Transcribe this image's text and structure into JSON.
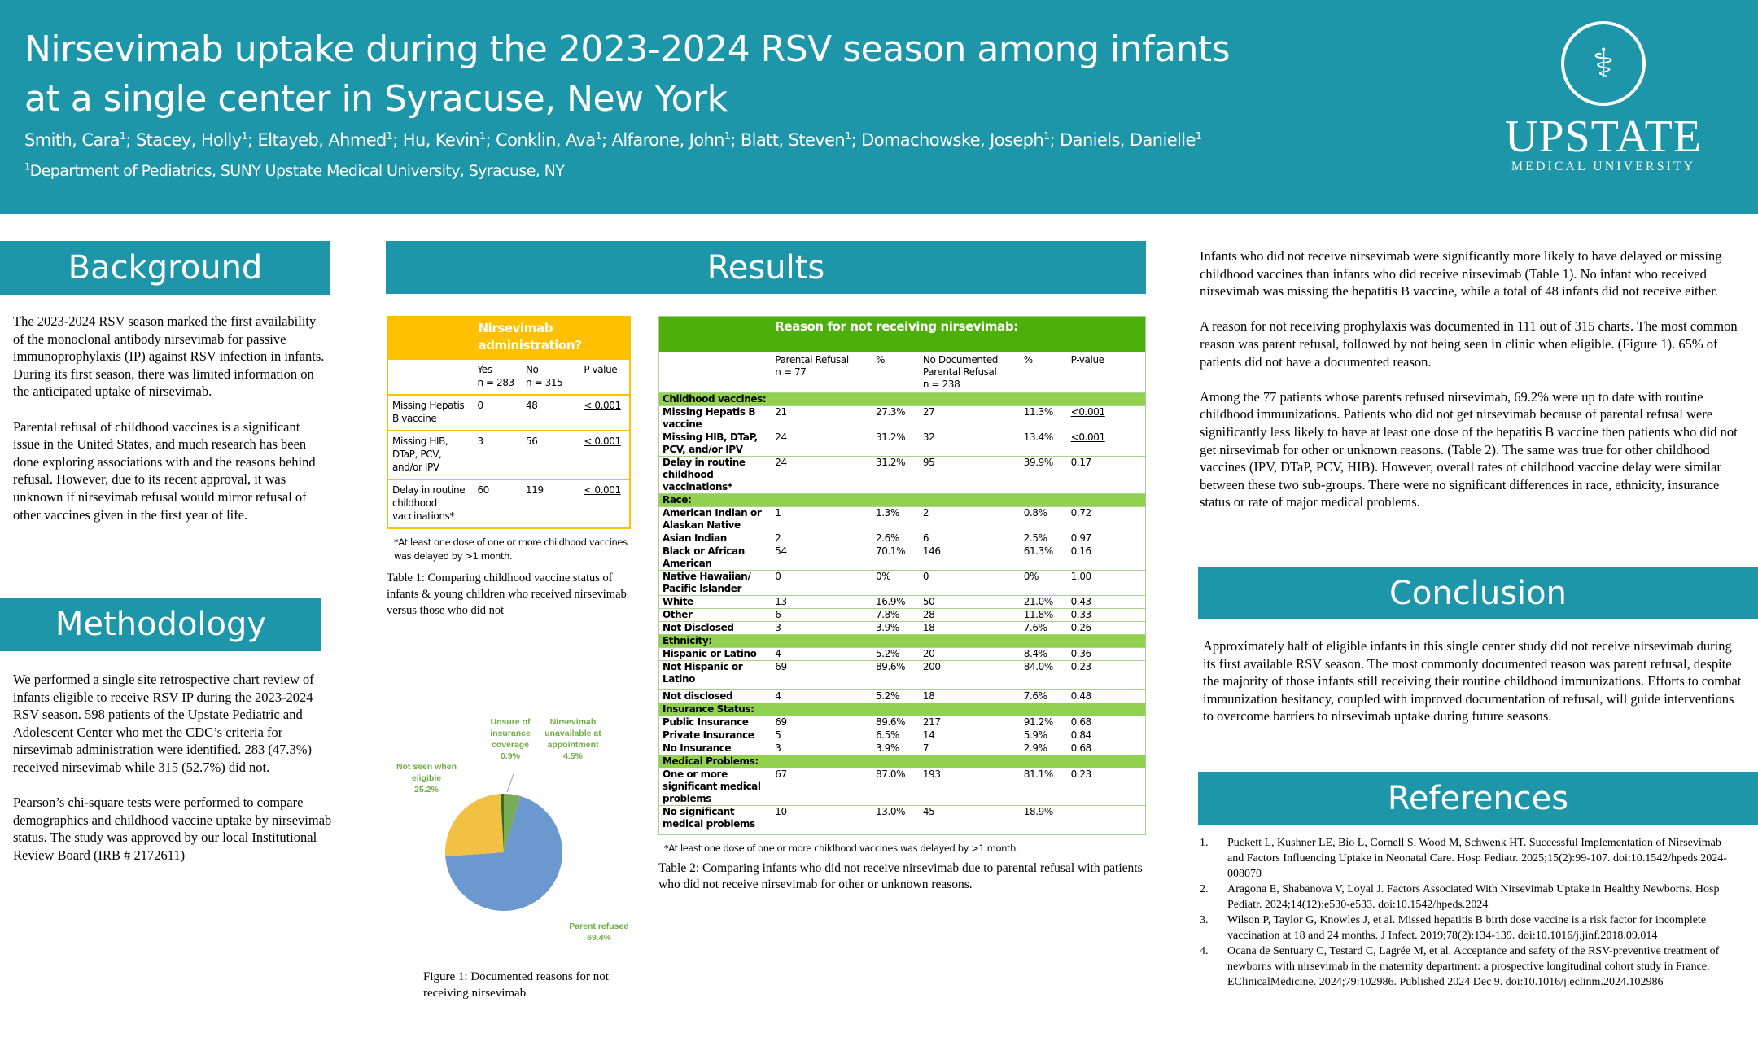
{
  "header": {
    "title": "Nirsevimab uptake during the 2023-2024 RSV season among infants at a single center in Syracuse, New York",
    "authors": [
      {
        "name": "Smith, Cara",
        "aff": "1"
      },
      {
        "name": "Stacey, Holly",
        "aff": "1"
      },
      {
        "name": "Eltayeb, Ahmed",
        "aff": "1"
      },
      {
        "name": "Hu, Kevin",
        "aff": "1"
      },
      {
        "name": "Conklin, Ava",
        "aff": "1"
      },
      {
        "name": "Alfarone, John",
        "aff": "1"
      },
      {
        "name": "Blatt, Steven",
        "aff": "1"
      },
      {
        "name": "Domachowske, Joseph",
        "aff": "1"
      },
      {
        "name": "Daniels, Danielle",
        "aff": "1"
      }
    ],
    "affiliation_marker": "1",
    "affiliation": "Department of Pediatrics, SUNY Upstate Medical University, Syracuse, NY",
    "logo": {
      "name": "UPSTATE",
      "sub": "MEDICAL UNIVERSITY"
    }
  },
  "background": {
    "heading": "Background",
    "paragraphs": [
      "The 2023-2024 RSV season marked the first availability of the monoclonal antibody nirsevimab for passive immunoprophylaxis (IP) against RSV infection in infants. During its first season, there was limited information on the anticipated uptake of nirsevimab.",
      "Parental refusal of childhood vaccines is a significant issue in the United States, and much research has been done exploring associations with and the reasons behind refusal. However, due to its recent approval, it was unknown if nirsevimab refusal would mirror refusal of other vaccines given in the first year of life."
    ]
  },
  "methodology": {
    "heading": "Methodology",
    "paragraphs": [
      "We performed a single site retrospective chart review of infants eligible to receive RSV IP during the 2023-2024 RSV season. 598 patients of the Upstate Pediatric and Adolescent Center who met the CDC’s criteria for nirsevimab administration were identified. 283 (47.3%)  received nirsevimab while 315 (52.7%) did not.",
      "Pearson’s chi-square tests were performed to compare demographics and childhood vaccine uptake by nirsevimab status. The study was approved by our local Institutional Review Board (IRB # 2172611)"
    ]
  },
  "results": {
    "heading": "Results",
    "table1": {
      "header": "Nirsevimab administration?",
      "columns": [
        "",
        "Yes\nn = 283",
        "No\nn = 315",
        "P-value"
      ],
      "rows": [
        [
          "Missing Hepatis B vaccine",
          "0",
          "48",
          "< 0.001"
        ],
        [
          "Missing HIB, DTaP, PCV, and/or IPV",
          "3",
          "56",
          "< 0.001"
        ],
        [
          "Delay in routine childhood vaccinations*",
          "60",
          "119",
          "< 0.001"
        ]
      ],
      "footnote": "*At least one dose of one or more childhood vaccines was delayed by >1 month.",
      "caption": "Table 1: Comparing childhood vaccine status of infants & young children who received nirsevimab versus those who did not"
    },
    "table2": {
      "header": "Reason for not receiving nirsevimab:",
      "columns": [
        "",
        "Parental Refusal\nn = 77",
        "%",
        "No Documented Parental Refusal\nn = 238",
        "%",
        "P-value"
      ],
      "rows": [
        {
          "section": "Childhood vaccines:"
        },
        {
          "cells": [
            "Missing Hepatis B vaccine",
            "21",
            "27.3%",
            "27",
            "11.3%",
            "<0.001"
          ],
          "sig": true
        },
        {
          "cells": [
            "Missing HIB, DTaP, PCV, and/or IPV",
            "24",
            "31.2%",
            "32",
            "13.4%",
            "<0.001"
          ],
          "sig": true
        },
        {
          "cells": [
            "Delay in routine childhood vaccinations*",
            "24",
            "31.2%",
            "95",
            "39.9%",
            "0.17"
          ]
        },
        {
          "section": "Race:"
        },
        {
          "cells": [
            "American Indian or Alaskan Native",
            "1",
            "1.3%",
            "2",
            "0.8%",
            "0.72"
          ]
        },
        {
          "cells": [
            "Asian Indian",
            "2",
            "2.6%",
            "6",
            "2.5%",
            "0.97"
          ]
        },
        {
          "cells": [
            "Black or African American",
            "54",
            "70.1%",
            "146",
            "61.3%",
            "0.16"
          ]
        },
        {
          "cells": [
            "Native Hawaiian/ Pacific Islander",
            "0",
            "0%",
            "0",
            "0%",
            "1.00"
          ]
        },
        {
          "cells": [
            "White",
            "13",
            "16.9%",
            "50",
            "21.0%",
            "0.43"
          ]
        },
        {
          "cells": [
            "Other",
            "6",
            "7.8%",
            "28",
            "11.8%",
            "0.33"
          ]
        },
        {
          "cells": [
            "Not Disclosed",
            "3",
            "3.9%",
            "18",
            "7.6%",
            "0.26"
          ]
        },
        {
          "section": "Ethnicity:"
        },
        {
          "cells": [
            "Hispanic or Latino",
            "4",
            "5.2%",
            "20",
            "8.4%",
            "0.36"
          ]
        },
        {
          "cells": [
            "Not Hispanic or Latino",
            "69",
            "89.6%",
            "200",
            "84.0%",
            "0.23"
          ],
          "tall": true
        },
        {
          "cells": [
            "Not disclosed",
            "4",
            "5.2%",
            "18",
            "7.6%",
            "0.48"
          ]
        },
        {
          "section": "Insurance Status:"
        },
        {
          "cells": [
            "Public Insurance",
            "69",
            "89.6%",
            "217",
            "91.2%",
            "0.68"
          ]
        },
        {
          "cells": [
            "Private Insurance",
            "5",
            "6.5%",
            "14",
            "5.9%",
            "0.84"
          ]
        },
        {
          "cells": [
            "No Insurance",
            "3",
            "3.9%",
            "7",
            "2.9%",
            "0.68"
          ]
        },
        {
          "section": "Medical Problems:"
        },
        {
          "cells": [
            "One or more significant medical problems",
            "67",
            "87.0%",
            "193",
            "81.1%",
            "0.23"
          ]
        },
        {
          "cells": [
            "No significant medical problems",
            "10",
            "13.0%",
            "45",
            "18.9%",
            ""
          ],
          "tall": true
        }
      ],
      "footnote": "*At least one dose of one or more childhood vaccines was delayed by >1 month.",
      "caption": "Table 2: Comparing infants who did not receive nirsevimab due to parental refusal with patients who did not receive nirsevimab for other or unknown reasons."
    },
    "figure_caption": "Figure 1: Documented reasons for not receiving nirsevimab"
  },
  "chart_data": {
    "type": "pie",
    "title": "Figure 1: Documented reasons for not receiving nirsevimab",
    "slices": [
      {
        "label": "Nirsevimab unavailable at appointment",
        "value": 4.5,
        "display": "4.5%",
        "color": "#7aab55"
      },
      {
        "label": "Parent refused",
        "value": 69.4,
        "display": "69.4%",
        "color": "#6a98cf"
      },
      {
        "label": "Not seen when eligible",
        "value": 25.2,
        "display": "25.2%",
        "color": "#f2c043"
      },
      {
        "label": "Unsure of insurance coverage",
        "value": 0.9,
        "display": "0.9%",
        "color": "#3b6a27"
      }
    ]
  },
  "findings": {
    "paragraphs": [
      "Infants who did not receive nirsevimab were significantly more likely to have delayed or missing childhood vaccines than infants who did receive nirsevimab (Table 1). No infant who received nirsevimab was missing the hepatitis B vaccine, while a total of 48 infants did not receive either.",
      "A reason for not receiving prophylaxis was documented in 111 out of 315 charts. The most common reason was parent refusal, followed by not being seen in clinic when eligible. (Figure 1). 65% of patients did not have a documented reason.",
      "Among the 77 patients whose parents refused nirsevimab, 69.2% were up to date with routine childhood immunizations. Patients who did not get nirsevimab because of parental refusal were significantly less likely to have at least one dose of the hepatitis B vaccine then patients who did not get nirsevimab for other or unknown reasons. (Table 2). The same was true for other childhood vaccines (IPV, DTaP, PCV, HIB). However, overall rates of childhood vaccine delay were similar between these two sub-groups. There were no significant differences in race, ethnicity, insurance status or rate of major medical problems."
    ]
  },
  "conclusion": {
    "heading": "Conclusion",
    "text": "Approximately half of eligible infants in this single center study did not receive nirsevimab during its first available RSV season. The most commonly documented reason was parent refusal, despite the majority of those infants still receiving their routine childhood immunizations. Efforts to combat immunization hesitancy, coupled with improved documentation of refusal, will guide interventions to overcome barriers to nirsevimab uptake during future seasons."
  },
  "references": {
    "heading": "References",
    "items": [
      "Puckett L, Kushner LE, Bio L, Cornell S, Wood M, Schwenk HT. Successful Implementation of Nirsevimab and Factors Influencing Uptake in Neonatal Care. Hosp Pediatr. 2025;15(2):99-107. doi:10.1542/hpeds.2024-008070",
      "Aragona E, Shabanova V, Loyal J. Factors Associated With Nirsevimab Uptake in Healthy Newborns. Hosp Pediatr. 2024;14(12):e530-e533. doi:10.1542/hpeds.2024",
      "Wilson P, Taylor G, Knowles J, et al. Missed hepatitis B birth dose vaccine is a risk factor for incomplete vaccination at 18 and 24 months. J Infect. 2019;78(2):134-139. doi:10.1016/j.jinf.2018.09.014",
      "Ocana de Sentuary C, Testard C, Lagrée M, et al. Acceptance and safety of the RSV-preventive treatment of newborns with nirsevimab in the maternity department: a prospective longitudinal cohort study in France. EClinicalMedicine. 2024;79:102986. Published 2024 Dec 9. doi:10.1016/j.eclinm.2024.102986"
    ]
  }
}
